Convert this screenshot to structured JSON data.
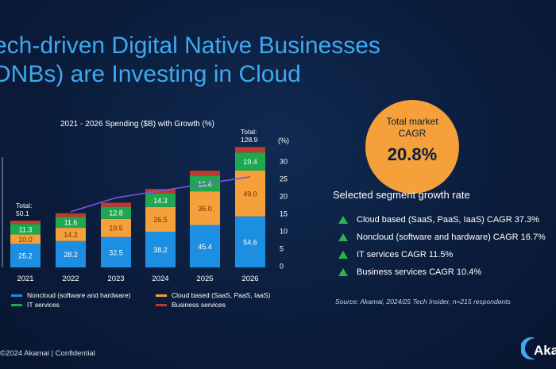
{
  "headline": {
    "line1": "ech-driven Digital Native Businesses",
    "line2": "DNBs) are Investing in Cloud"
  },
  "chart_data": {
    "type": "bar",
    "title": "2021 - 2026 Spending ($B) with Growth (%)",
    "categories": [
      "2021",
      "2022",
      "2023",
      "2024",
      "2025",
      "2026"
    ],
    "series": [
      {
        "name": "Noncloud (software and hardware)",
        "color": "#1d8fe2",
        "values": [
          25.2,
          28.2,
          32.5,
          38.2,
          45.4,
          54.6
        ]
      },
      {
        "name": "Cloud based (SaaS, PaaS, IaaS)",
        "color": "#f5a03a",
        "values": [
          10.0,
          14.2,
          19.5,
          26.5,
          36.0,
          49.0
        ]
      },
      {
        "name": "IT services",
        "color": "#1fa84f",
        "values": [
          11.3,
          11.6,
          12.8,
          14.3,
          16.6,
          19.4
        ]
      },
      {
        "name": "Business services",
        "color": "#c0392b",
        "values": [
          3.6,
          4.0,
          4.5,
          5.0,
          5.5,
          5.9
        ]
      }
    ],
    "totals": [
      {
        "category": "2021",
        "label": "Total:",
        "value": "50.1"
      },
      {
        "category": "2026",
        "label": "Total:",
        "value": "128.9"
      }
    ],
    "growth_line": {
      "color": "#7b52e0",
      "x": [
        "2022",
        "2023",
        "2024",
        "2025",
        "2026"
      ],
      "values": [
        15.5,
        19.5,
        21.5,
        23.5,
        25.5
      ]
    },
    "right_axis": {
      "unit": "(%)",
      "ticks": [
        0,
        5,
        10,
        15,
        20,
        25,
        30
      ],
      "range": [
        0,
        30
      ]
    },
    "y_range": [
      0,
      135
    ],
    "grid": false,
    "legend_position": "bottom"
  },
  "cagr": {
    "label": "Total market CAGR",
    "value": "20.8%"
  },
  "segments": {
    "heading": "Selected segment growth rate",
    "items": [
      "Cloud based (SaaS, PaaS, IaaS) CAGR 37.3%",
      "Noncloud (software and hardware) CAGR 16.7%",
      "IT services CAGR 11.5%",
      "Business services CAGR 10.4%"
    ]
  },
  "source": "Source: Akamai, 2024/25 Tech Insider, n=215 respondents",
  "footer": {
    "copyright": "©2024 Akamai | Confidential",
    "logo": "Aka"
  }
}
